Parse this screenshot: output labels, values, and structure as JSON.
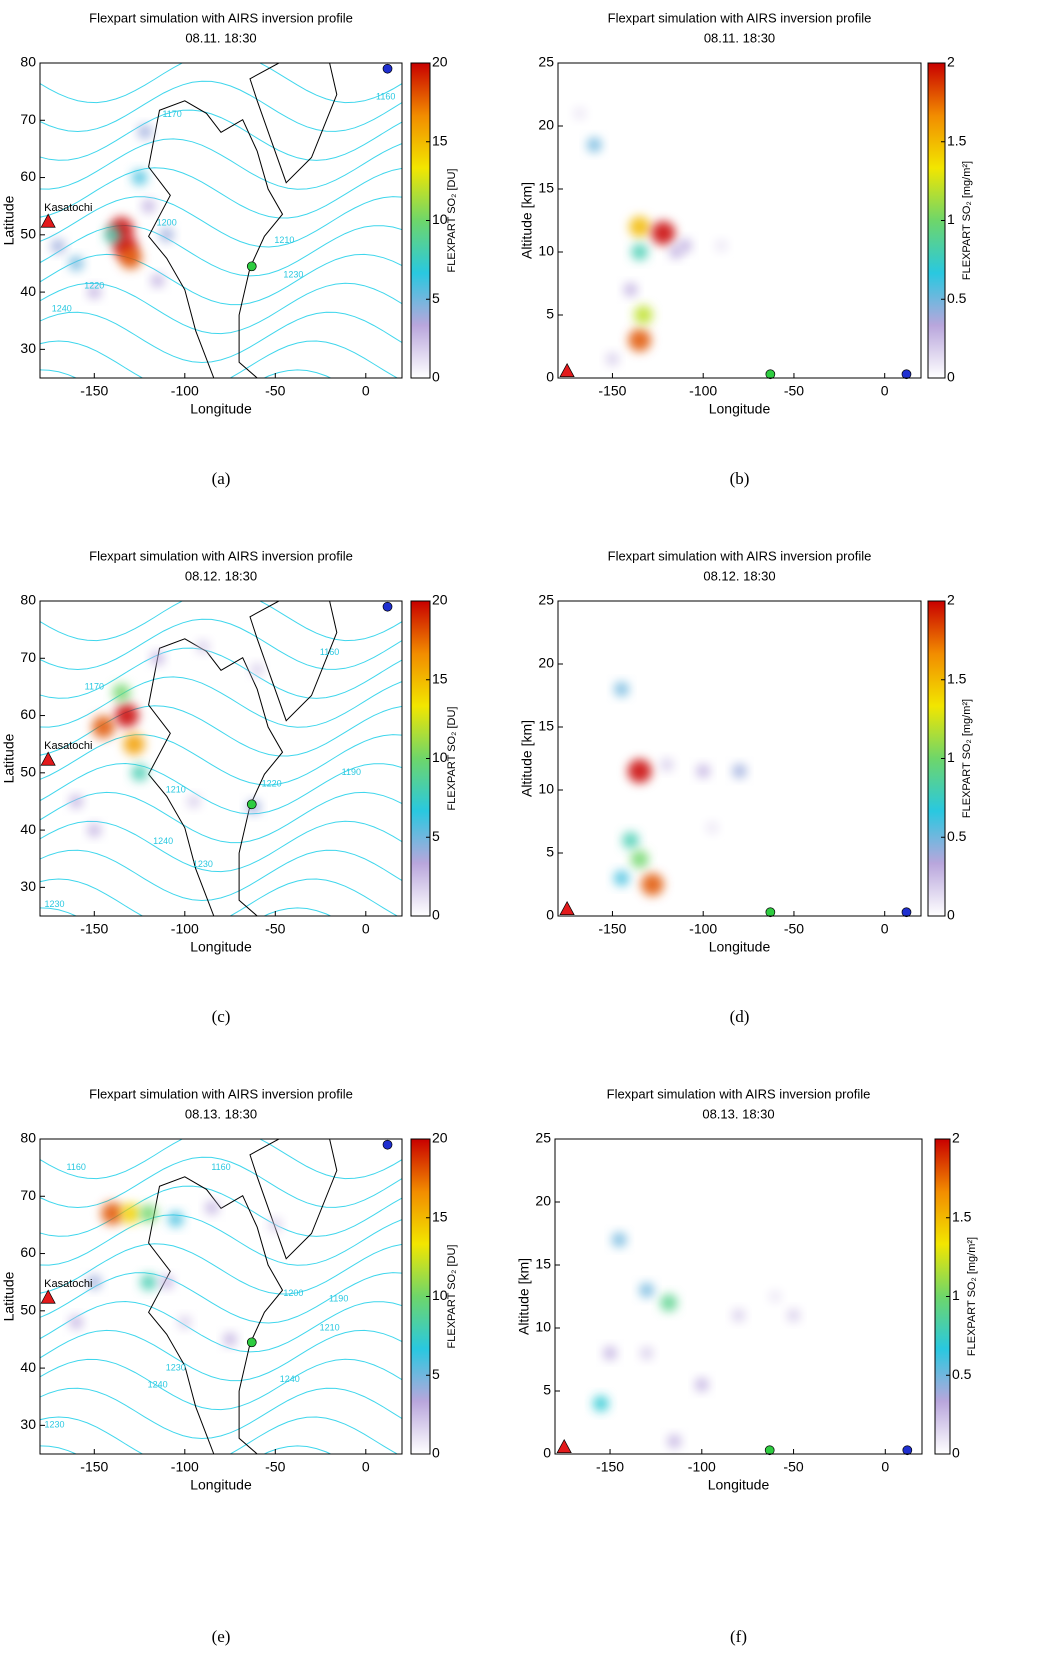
{
  "chart_data": [
    {
      "type": "map",
      "title": "Flexpart simulation with AIRS inversion profile",
      "subtitle": "08.11. 18:30",
      "xlabel": "Longitude",
      "ylabel": "Latitude",
      "xlim": [
        -180,
        20
      ],
      "xticks": [
        -150,
        -100,
        -50,
        0
      ],
      "ylim": [
        25,
        80
      ],
      "yticks": [
        30,
        40,
        50,
        60,
        70,
        80
      ],
      "colorbar": {
        "label": "FLEXPART SO₂ [DU]",
        "lim": [
          0,
          20
        ],
        "ticks": [
          0,
          5,
          10,
          15,
          20
        ],
        "colors": [
          "#ffffff",
          "#b9a6dc",
          "#29c8e0",
          "#6ed66a",
          "#f2e600",
          "#f28c00",
          "#c80000"
        ]
      },
      "field": {
        "x": [
          -135,
          -133,
          -130,
          -140,
          -125,
          -122,
          -110,
          -115,
          -160,
          -170,
          -150,
          -120
        ],
        "y": [
          51,
          48,
          46,
          50,
          60,
          68,
          50,
          42,
          45,
          48,
          40,
          55
        ],
        "values": [
          20,
          20,
          18,
          8,
          6,
          4,
          4,
          3,
          5,
          4,
          3,
          3
        ]
      },
      "markers": [
        {
          "name": "Kasatochi",
          "x": -175.5,
          "y": 52.2,
          "color": "#e31a1c",
          "shape": "triangle"
        },
        {
          "x": -63,
          "y": 44.5,
          "color": "#2ecc40",
          "shape": "circle"
        },
        {
          "x": 12,
          "y": 79,
          "color": "#1f2fd0",
          "shape": "circle"
        }
      ],
      "contour_labels": [
        {
          "text": "1160",
          "x": 11,
          "y": 74
        },
        {
          "text": "1170",
          "x": -107,
          "y": 71
        },
        {
          "text": "1200",
          "x": -110,
          "y": 52
        },
        {
          "text": "1210",
          "x": -45,
          "y": 49
        },
        {
          "text": "1230",
          "x": -40,
          "y": 43
        },
        {
          "text": "1240",
          "x": -168,
          "y": 37
        },
        {
          "text": "1220",
          "x": -150,
          "y": 41
        }
      ],
      "caption": "(a)"
    },
    {
      "type": "section",
      "title": "Flexpart simulation with AIRS inversion profile",
      "subtitle": "08.11. 18:30",
      "xlabel": "Longitude",
      "ylabel": "Altitude [km]",
      "xlim": [
        -180,
        20
      ],
      "xticks": [
        -150,
        -100,
        -50,
        0
      ],
      "ylim": [
        0,
        25
      ],
      "yticks": [
        0,
        5,
        10,
        15,
        20,
        25
      ],
      "colorbar": {
        "label": "FLEXPART SO₂ [mg/m²]",
        "lim": [
          0,
          2
        ],
        "ticks": [
          0,
          0.5,
          1,
          1.5,
          2
        ],
        "colors": [
          "#ffffff",
          "#b9a6dc",
          "#29c8e0",
          "#6ed66a",
          "#f2e600",
          "#f28c00",
          "#c80000"
        ]
      },
      "field": {
        "x": [
          -160,
          -168,
          -135,
          -135,
          -122,
          -135,
          -133,
          -140,
          -110,
          -90,
          -115,
          -150
        ],
        "y": [
          18.5,
          21,
          12,
          10,
          11.5,
          3,
          5,
          7,
          10.5,
          10.5,
          10,
          1.5
        ],
        "values": [
          0.5,
          0.1,
          1.5,
          0.8,
          2,
          1.8,
          1.2,
          0.3,
          0.3,
          0.1,
          0.3,
          0.2
        ]
      },
      "markers": [
        {
          "x": -175,
          "y": 0.5,
          "color": "#e31a1c",
          "shape": "triangle"
        },
        {
          "x": -63,
          "y": 0.3,
          "color": "#2ecc40",
          "shape": "circle"
        },
        {
          "x": 12,
          "y": 0.3,
          "color": "#1f2fd0",
          "shape": "circle"
        }
      ],
      "caption": "(b)"
    },
    {
      "type": "map",
      "title": "Flexpart simulation with AIRS inversion profile",
      "subtitle": "08.12. 18:30",
      "xlabel": "Longitude",
      "ylabel": "Latitude",
      "xlim": [
        -180,
        20
      ],
      "xticks": [
        -150,
        -100,
        -50,
        0
      ],
      "ylim": [
        25,
        80
      ],
      "yticks": [
        30,
        40,
        50,
        60,
        70,
        80
      ],
      "colorbar": {
        "label": "FLEXPART SO₂ [DU]",
        "lim": [
          0,
          20
        ],
        "ticks": [
          0,
          5,
          10,
          15,
          20
        ],
        "colors": [
          "#ffffff",
          "#b9a6dc",
          "#29c8e0",
          "#6ed66a",
          "#f2e600",
          "#f28c00",
          "#c80000"
        ]
      },
      "field": {
        "x": [
          -145,
          -132,
          -128,
          -125,
          -135,
          -115,
          -90,
          -60,
          -160,
          -150,
          -95,
          -62
        ],
        "y": [
          58,
          60,
          55,
          50,
          64,
          70,
          72,
          68,
          45,
          40,
          45,
          44
        ],
        "values": [
          18,
          20,
          16,
          8,
          10,
          3,
          2,
          2,
          3,
          3,
          2,
          4
        ]
      },
      "markers": [
        {
          "name": "Kasatochi",
          "x": -175.5,
          "y": 52.2,
          "color": "#e31a1c",
          "shape": "triangle"
        },
        {
          "x": -63,
          "y": 44.5,
          "color": "#2ecc40",
          "shape": "circle"
        },
        {
          "x": 12,
          "y": 79,
          "color": "#1f2fd0",
          "shape": "circle"
        }
      ],
      "contour_labels": [
        {
          "text": "1170",
          "x": -150,
          "y": 65
        },
        {
          "text": "1160",
          "x": -20,
          "y": 71
        },
        {
          "text": "1210",
          "x": -105,
          "y": 47
        },
        {
          "text": "1220",
          "x": -52,
          "y": 48
        },
        {
          "text": "1190",
          "x": -8,
          "y": 50
        },
        {
          "text": "1240",
          "x": -112,
          "y": 38
        },
        {
          "text": "1230",
          "x": -90,
          "y": 34
        },
        {
          "text": "1230",
          "x": -172,
          "y": 27
        }
      ],
      "caption": "(c)"
    },
    {
      "type": "section",
      "title": "Flexpart simulation with AIRS inversion profile",
      "subtitle": "08.12. 18:30",
      "xlabel": "Longitude",
      "ylabel": "Altitude [km]",
      "xlim": [
        -180,
        20
      ],
      "xticks": [
        -150,
        -100,
        -50,
        0
      ],
      "ylim": [
        0,
        25
      ],
      "yticks": [
        0,
        5,
        10,
        15,
        20,
        25
      ],
      "colorbar": {
        "label": "FLEXPART SO₂ [mg/m²]",
        "lim": [
          0,
          2
        ],
        "ticks": [
          0,
          0.5,
          1,
          1.5,
          2
        ],
        "colors": [
          "#ffffff",
          "#b9a6dc",
          "#29c8e0",
          "#6ed66a",
          "#f2e600",
          "#f28c00",
          "#c80000"
        ]
      },
      "field": {
        "x": [
          -145,
          -135,
          -140,
          -135,
          -128,
          -100,
          -80,
          -120,
          -145,
          -95
        ],
        "y": [
          18,
          11.5,
          6,
          4.5,
          2.5,
          11.5,
          11.5,
          12,
          3,
          7
        ],
        "values": [
          0.5,
          2,
          0.8,
          1,
          1.8,
          0.3,
          0.4,
          0.2,
          0.6,
          0.1
        ]
      },
      "markers": [
        {
          "x": -175,
          "y": 0.5,
          "color": "#e31a1c",
          "shape": "triangle"
        },
        {
          "x": -63,
          "y": 0.3,
          "color": "#2ecc40",
          "shape": "circle"
        },
        {
          "x": 12,
          "y": 0.3,
          "color": "#1f2fd0",
          "shape": "circle"
        }
      ],
      "caption": "(d)"
    },
    {
      "type": "map",
      "title": "Flexpart simulation with AIRS inversion profile",
      "subtitle": "08.13. 18:30",
      "xlabel": "Longitude",
      "ylabel": "Latitude",
      "xlim": [
        -180,
        20
      ],
      "xticks": [
        -150,
        -100,
        -50,
        0
      ],
      "ylim": [
        25,
        80
      ],
      "yticks": [
        30,
        40,
        50,
        60,
        70,
        80
      ],
      "colorbar": {
        "label": "FLEXPART SO₂ [DU]",
        "lim": [
          0,
          20
        ],
        "ticks": [
          0,
          5,
          10,
          15,
          20
        ],
        "colors": [
          "#ffffff",
          "#b9a6dc",
          "#29c8e0",
          "#6ed66a",
          "#f2e600",
          "#f28c00",
          "#c80000"
        ]
      },
      "field": {
        "x": [
          -140,
          -130,
          -120,
          -105,
          -85,
          -120,
          -150,
          -160,
          -110,
          -75,
          -50,
          -100
        ],
        "y": [
          67,
          67,
          67,
          66,
          68,
          55,
          55,
          48,
          55,
          45,
          65,
          48
        ],
        "values": [
          18,
          14,
          10,
          6,
          3,
          8,
          4,
          3,
          3,
          3,
          2,
          2
        ]
      },
      "markers": [
        {
          "name": "Kasatochi",
          "x": -175.5,
          "y": 52.2,
          "color": "#e31a1c",
          "shape": "triangle"
        },
        {
          "x": -63,
          "y": 44.5,
          "color": "#2ecc40",
          "shape": "circle"
        },
        {
          "x": 12,
          "y": 79,
          "color": "#1f2fd0",
          "shape": "circle"
        }
      ],
      "contour_labels": [
        {
          "text": "1160",
          "x": -160,
          "y": 75
        },
        {
          "text": "1160",
          "x": -80,
          "y": 75
        },
        {
          "text": "1200",
          "x": -40,
          "y": 53
        },
        {
          "text": "1190",
          "x": -15,
          "y": 52
        },
        {
          "text": "1210",
          "x": -20,
          "y": 47
        },
        {
          "text": "1230",
          "x": -105,
          "y": 40
        },
        {
          "text": "1240",
          "x": -115,
          "y": 37
        },
        {
          "text": "1240",
          "x": -42,
          "y": 38
        },
        {
          "text": "1230",
          "x": -172,
          "y": 30
        }
      ],
      "caption": "(e)"
    },
    {
      "type": "section",
      "title": "Flexpart simulation with AIRS inversion profile",
      "subtitle": "08.13. 18:30",
      "xlabel": "Longitude",
      "ylabel": "Altitude [km]",
      "xlim": [
        -180,
        20
      ],
      "xticks": [
        -150,
        -100,
        -50,
        0
      ],
      "ylim": [
        0,
        25
      ],
      "yticks": [
        0,
        5,
        10,
        15,
        20,
        25
      ],
      "colorbar": {
        "label": "FLEXPART SO₂ [mg/m²]",
        "lim": [
          0,
          2
        ],
        "ticks": [
          0,
          0.5,
          1,
          1.5,
          2
        ],
        "colors": [
          "#ffffff",
          "#b9a6dc",
          "#29c8e0",
          "#6ed66a",
          "#f2e600",
          "#f28c00",
          "#c80000"
        ]
      },
      "field": {
        "x": [
          -145,
          -118,
          -130,
          -150,
          -155,
          -100,
          -80,
          -50,
          -115,
          -130,
          -60
        ],
        "y": [
          17,
          12,
          13,
          8,
          4,
          5.5,
          11,
          11,
          1,
          8,
          12.5
        ],
        "values": [
          0.5,
          0.9,
          0.5,
          0.3,
          0.7,
          0.3,
          0.2,
          0.2,
          0.3,
          0.2,
          0.1
        ]
      },
      "markers": [
        {
          "x": -175,
          "y": 0.5,
          "color": "#e31a1c",
          "shape": "triangle"
        },
        {
          "x": -63,
          "y": 0.3,
          "color": "#2ecc40",
          "shape": "circle"
        },
        {
          "x": 12,
          "y": 0.3,
          "color": "#1f2fd0",
          "shape": "circle"
        }
      ],
      "caption": "(f)"
    }
  ]
}
